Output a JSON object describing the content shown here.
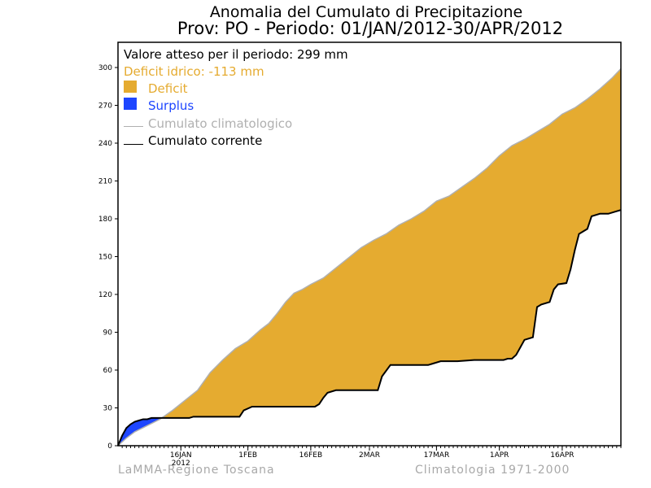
{
  "header": {
    "title": "Anomalia del Cumulato di Precipitazione",
    "subtitle": "Prov: PO - Periodo: 01/JAN/2012-30/APR/2012"
  },
  "legend": {
    "expected": "Valore atteso per il periodo: 299 mm",
    "deficit_value": "Deficit idrico: -113 mm",
    "deficit_label": "Deficit",
    "surplus_label": "Surplus",
    "climatological_label": "Cumulato climatologico",
    "current_label": "Cumulato corrente"
  },
  "colors": {
    "deficit": "#e5ab30",
    "surplus": "#1e46ff",
    "climatological": "#b0b0b0",
    "current": "#000000"
  },
  "footer": {
    "left": "LaMMA-Regione Toscana",
    "right": "Climatologia 1971-2000"
  },
  "chart_data": {
    "type": "area",
    "x_unit": "day of period (1 = 01 JAN 2012)",
    "xlim": [
      1,
      121
    ],
    "ylim": [
      0,
      320
    ],
    "y_ticks": [
      0,
      30,
      60,
      90,
      120,
      150,
      180,
      210,
      240,
      270,
      300
    ],
    "x_ticks": [
      {
        "day": 16,
        "label": "16JAN",
        "sublabel": "2012"
      },
      {
        "day": 32,
        "label": "1FEB"
      },
      {
        "day": 47,
        "label": "16FEB"
      },
      {
        "day": 61,
        "label": "2MAR"
      },
      {
        "day": 77,
        "label": "17MAR"
      },
      {
        "day": 92,
        "label": "1APR"
      },
      {
        "day": 107,
        "label": "16APR"
      }
    ],
    "series": [
      {
        "name": "Cumulato climatologico",
        "x": [
          1,
          2,
          3,
          5,
          8,
          11,
          14,
          17,
          20,
          23,
          26,
          29,
          32,
          35,
          37,
          39,
          41,
          43,
          45,
          47,
          50,
          53,
          56,
          59,
          62,
          65,
          68,
          71,
          74,
          77,
          80,
          83,
          86,
          89,
          92,
          95,
          98,
          101,
          104,
          107,
          110,
          113,
          116,
          119,
          121
        ],
        "values": [
          0,
          3,
          6,
          11,
          16,
          21,
          28,
          36,
          44,
          58,
          68,
          77,
          83,
          92,
          97,
          105,
          114,
          121,
          124,
          128,
          133,
          141,
          149,
          157,
          163,
          168,
          175,
          180,
          186,
          194,
          198,
          205,
          212,
          220,
          230,
          238,
          243,
          249,
          255,
          263,
          268,
          275,
          283,
          292,
          299
        ]
      },
      {
        "name": "Cumulato corrente",
        "x": [
          1,
          2,
          3,
          4,
          5,
          6,
          7,
          8,
          9,
          10,
          11,
          14,
          18,
          19,
          21,
          24,
          27,
          30,
          31,
          33,
          36,
          40,
          44,
          48,
          49,
          50,
          51,
          53,
          57,
          63,
          64,
          66,
          70,
          75,
          76,
          78,
          82,
          86,
          90,
          93,
          94,
          95,
          96,
          97,
          98,
          100,
          101,
          102,
          104,
          105,
          106,
          108,
          109,
          110,
          111,
          113,
          114,
          116,
          118,
          120,
          121
        ],
        "values": [
          0,
          8,
          14,
          17,
          19,
          20,
          21,
          21,
          22,
          22,
          22,
          22,
          22,
          23,
          23,
          23,
          23,
          23,
          28,
          31,
          31,
          31,
          31,
          31,
          33,
          38,
          42,
          44,
          44,
          44,
          55,
          64,
          64,
          64,
          65,
          67,
          67,
          68,
          68,
          68,
          69,
          69,
          72,
          78,
          84,
          86,
          110,
          112,
          114,
          124,
          128,
          129,
          140,
          155,
          168,
          172,
          182,
          184,
          184,
          186,
          187
        ]
      }
    ]
  }
}
